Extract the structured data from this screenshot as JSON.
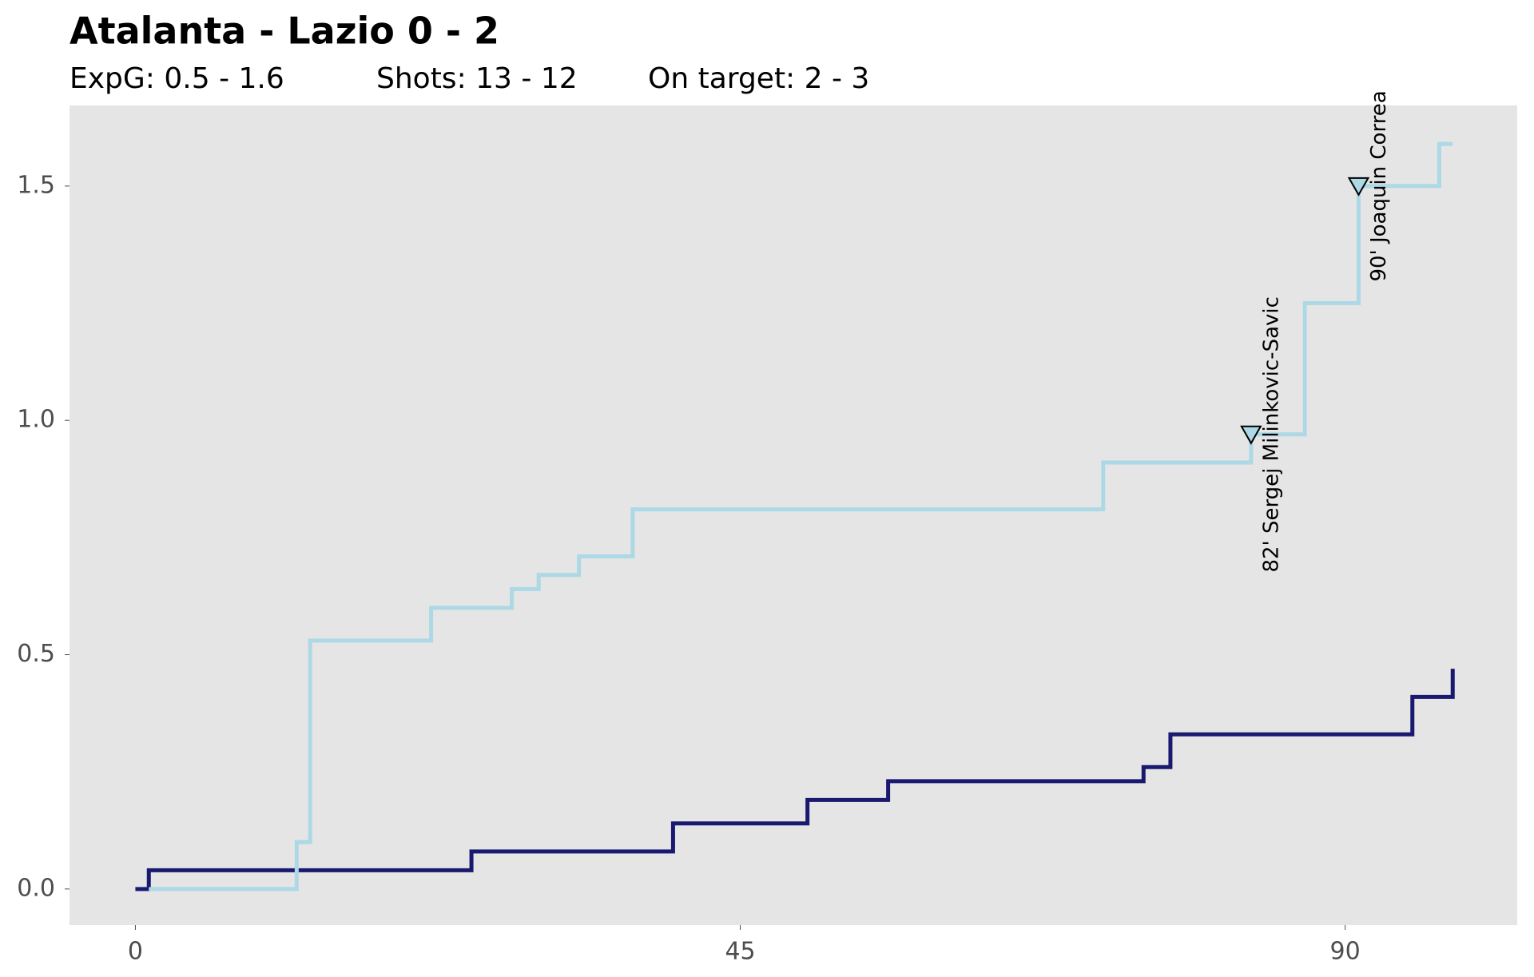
{
  "chart_data": {
    "type": "step",
    "title": "Atalanta - Lazio   0 - 2",
    "subtitle": [
      "ExpG:  0.5  - 1.6",
      "Shots:  13 - 12",
      "On target:  2 - 3"
    ],
    "xlim": [
      -4.9,
      102.8
    ],
    "ylim": [
      -0.077,
      1.672
    ],
    "xticks": [
      0,
      45,
      90
    ],
    "yticks": [
      {
        "value": 0,
        "label": "0.0"
      },
      {
        "value": 0.5,
        "label": "0.5"
      },
      {
        "value": 1,
        "label": "1.0"
      },
      {
        "value": 1.5,
        "label": "1.5"
      }
    ],
    "series": [
      {
        "color": "#191970",
        "x": [
          0,
          1,
          25,
          40,
          50,
          56,
          75,
          77,
          95,
          98
        ],
        "values": [
          0,
          0.04,
          0.08,
          0.14,
          0.19,
          0.23,
          0.26,
          0.33,
          0.41,
          0.47
        ]
      },
      {
        "color": "#add8e6",
        "x": [
          1,
          12,
          13,
          22,
          28,
          30,
          33,
          37,
          72,
          83,
          87,
          91,
          97,
          98
        ],
        "values": [
          0,
          0.1,
          0.53,
          0.6,
          0.64,
          0.67,
          0.71,
          0.81,
          0.91,
          0.97,
          1.25,
          1.5,
          1.59,
          1.59
        ]
      }
    ],
    "goals": [
      {
        "x": 83,
        "value": 0.97,
        "label": "82' Sergej Milinkovic-Savic",
        "color": "#add8e6"
      },
      {
        "x": 91,
        "value": 1.5,
        "label": "90' Joaquin Correa",
        "color": "#add8e6"
      }
    ]
  }
}
